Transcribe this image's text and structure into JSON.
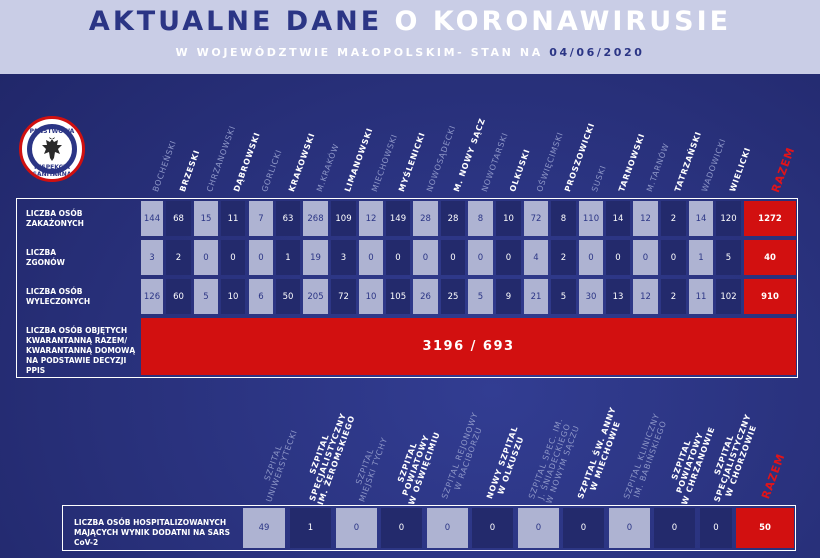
{
  "header": {
    "title_part1": "AKTUALNE DANE ",
    "title_part2": "O KORONAWIRUSIE",
    "subtitle_prefix": "W WOJEWÓDZTWIE MAŁOPOLSKIM- STAN NA ",
    "subtitle_date": "04/06/2020"
  },
  "badge": {
    "top_text": "PAŃSTWOWA",
    "bottom_text": "INSPEKCJA SANITARNA"
  },
  "colors": {
    "accent_red": "#d21010",
    "navy": "#2b3585",
    "light_cell": "#aeb3d2",
    "dark_cell": "#232a6c"
  },
  "table1": {
    "columns": [
      {
        "label": "BOCHEŃSKI",
        "style": "g"
      },
      {
        "label": "BRZESKI",
        "style": "w"
      },
      {
        "label": "CHRZANOWSKI",
        "style": "g"
      },
      {
        "label": "DĄBROWSKI",
        "style": "w"
      },
      {
        "label": "GORLICKI",
        "style": "g"
      },
      {
        "label": "KRAKOWSKI",
        "style": "w"
      },
      {
        "label": "M.KRAKÓW",
        "style": "g"
      },
      {
        "label": "LIMANOWSKI",
        "style": "w"
      },
      {
        "label": "MIECHOWSKI",
        "style": "g"
      },
      {
        "label": "MYŚLENICKI",
        "style": "w"
      },
      {
        "label": "NOWOSĄDECKI",
        "style": "g"
      },
      {
        "label": "M. NOWY SĄCZ",
        "style": "w"
      },
      {
        "label": "NOWOTARSKI",
        "style": "g"
      },
      {
        "label": "OLKUSKI",
        "style": "w"
      },
      {
        "label": "OŚWIĘCIMSKI",
        "style": "g"
      },
      {
        "label": "PROSZOWICKI",
        "style": "w"
      },
      {
        "label": "SUSKI",
        "style": "g"
      },
      {
        "label": "TARNOWSKI",
        "style": "w"
      },
      {
        "label": "M.TARNÓW",
        "style": "g"
      },
      {
        "label": "TATRZAŃSKI",
        "style": "w"
      },
      {
        "label": "WADOWICKI",
        "style": "g"
      },
      {
        "label": "WIELICKI",
        "style": "w"
      },
      {
        "label": "RAZEM",
        "style": "r"
      }
    ],
    "rows": [
      {
        "label": "LICZBA OSÓB\nZAKAŻONYCH",
        "values": [
          "144",
          "68",
          "15",
          "11",
          "7",
          "63",
          "268",
          "109",
          "12",
          "149",
          "28",
          "28",
          "8",
          "10",
          "72",
          "8",
          "110",
          "14",
          "12",
          "2",
          "14",
          "120",
          "1272"
        ]
      },
      {
        "label": "LICZBA\nZGONÓW",
        "values": [
          "3",
          "2",
          "0",
          "0",
          "0",
          "1",
          "19",
          "3",
          "0",
          "0",
          "0",
          "0",
          "0",
          "0",
          "4",
          "2",
          "0",
          "0",
          "0",
          "0",
          "1",
          "5",
          "40"
        ]
      },
      {
        "label": "LICZBA OSÓB\nWYLECZONYCH",
        "values": [
          "126",
          "60",
          "5",
          "10",
          "6",
          "50",
          "205",
          "72",
          "10",
          "105",
          "26",
          "25",
          "5",
          "9",
          "21",
          "5",
          "30",
          "13",
          "12",
          "2",
          "11",
          "102",
          "910"
        ]
      }
    ],
    "quarantine": {
      "label": "LICZBA OSÓB OBJĘTYCH\nKWARANTANNĄ RAZEM/\nKWARANTANNĄ DOMOWĄ\nNA PODSTAWIE DECYZJI PPIS",
      "value": "3196 / 693"
    }
  },
  "table2": {
    "columns": [
      {
        "label": "SZPITAL\nUNIWERSYTECKI",
        "style": "g"
      },
      {
        "label": "SZPITAL\nSPECJALISTYCZNY\nIM. ŻEROMSKIEGO",
        "style": "w"
      },
      {
        "label": "SZPITAL\nMIEJSKI TYCHY",
        "style": "g"
      },
      {
        "label": "SZPITAL\nPOWIATOWY\nW OŚWIĘCIMIU",
        "style": "w"
      },
      {
        "label": "SZPITAL REJONOWY\nW RACIBORZU",
        "style": "g"
      },
      {
        "label": "NOWY SZPITAL\nW OLKUSZU",
        "style": "w"
      },
      {
        "label": "SZPITAL SPEC. IM.\nJ. ŚNIADECKIEGO\nW NOWYM SĄCZU",
        "style": "g"
      },
      {
        "label": "SZPITAL ŚW. ANNY\nW MIECHOWIE",
        "style": "w"
      },
      {
        "label": "SZPITAL KLINICZNY\nIM. BABIŃSKIEGO",
        "style": "g"
      },
      {
        "label": "SZPITAL\nPOWIATOWY\nW CHRZANOWIE",
        "style": "w"
      },
      {
        "label": "SZPITAL\nSPECJALISTYCZNY\nW CHORZOWIE",
        "style": "w"
      },
      {
        "label": "RAZEM",
        "style": "r"
      }
    ],
    "row": {
      "label": "LICZBA OSÓB HOSPITALIZOWANYCH\nMAJĄCYCH WYNIK DODATNI NA SARS CoV-2",
      "values": [
        "49",
        "1",
        "0",
        "0",
        "0",
        "0",
        "0",
        "0",
        "0",
        "0",
        "0",
        "50"
      ]
    }
  }
}
